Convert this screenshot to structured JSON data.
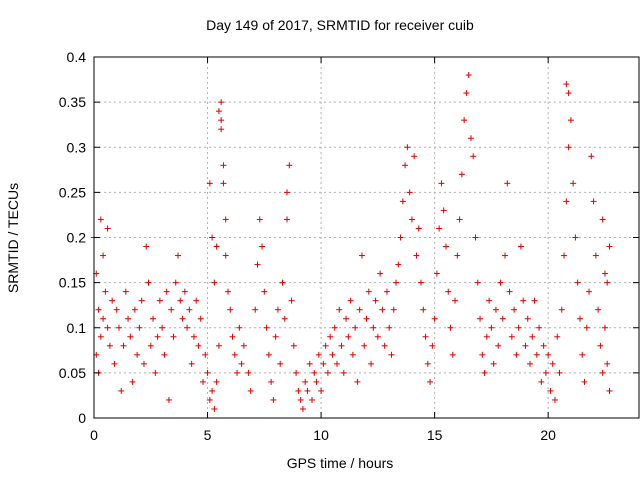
{
  "chart_data": {
    "type": "scatter",
    "title": "Day 149 of 2017, SRMTID for receiver cuib",
    "xlabel": "GPS time / hours",
    "ylabel": "SRMTID / TECUs",
    "xlim": [
      0,
      24
    ],
    "ylim": [
      0,
      0.4
    ],
    "x_ticks": [
      0,
      5,
      10,
      15,
      20
    ],
    "x_tick_labels": [
      "0",
      "5",
      "10",
      "15",
      "20"
    ],
    "y_ticks": [
      0,
      0.05,
      0.1,
      0.15,
      0.2,
      0.25,
      0.3,
      0.35,
      0.4
    ],
    "y_tick_labels": [
      "0",
      "0.05",
      "0.1",
      "0.15",
      "0.2",
      "0.25",
      "0.3",
      "0.35",
      "0.4"
    ],
    "grid": true,
    "marker": "+",
    "color": "#e00000",
    "series": [
      {
        "name": "SRMTID",
        "points": [
          [
            0.0,
            0.2
          ],
          [
            0.1,
            0.16
          ],
          [
            0.2,
            0.12
          ],
          [
            0.3,
            0.22
          ],
          [
            0.4,
            0.18
          ],
          [
            0.5,
            0.14
          ],
          [
            0.6,
            0.21
          ],
          [
            0.1,
            0.07
          ],
          [
            0.2,
            0.05
          ],
          [
            0.3,
            0.09
          ],
          [
            0.4,
            0.11
          ],
          [
            0.6,
            0.1
          ],
          [
            0.7,
            0.08
          ],
          [
            0.8,
            0.13
          ],
          [
            0.9,
            0.06
          ],
          [
            1.0,
            0.12
          ],
          [
            1.1,
            0.1
          ],
          [
            1.2,
            0.03
          ],
          [
            1.3,
            0.08
          ],
          [
            1.4,
            0.14
          ],
          [
            1.5,
            0.11
          ],
          [
            1.6,
            0.09
          ],
          [
            1.7,
            0.04
          ],
          [
            1.8,
            0.12
          ],
          [
            1.9,
            0.07
          ],
          [
            2.0,
            0.1
          ],
          [
            2.1,
            0.13
          ],
          [
            2.2,
            0.06
          ],
          [
            2.3,
            0.19
          ],
          [
            2.4,
            0.15
          ],
          [
            2.5,
            0.08
          ],
          [
            2.6,
            0.11
          ],
          [
            2.7,
            0.05
          ],
          [
            2.8,
            0.09
          ],
          [
            2.9,
            0.13
          ],
          [
            3.0,
            0.1
          ],
          [
            3.1,
            0.07
          ],
          [
            3.2,
            0.14
          ],
          [
            3.3,
            0.02
          ],
          [
            3.4,
            0.12
          ],
          [
            3.5,
            0.09
          ],
          [
            3.6,
            0.15
          ],
          [
            3.7,
            0.18
          ],
          [
            3.8,
            0.13
          ],
          [
            3.9,
            0.11
          ],
          [
            4.0,
            0.14
          ],
          [
            4.1,
            0.1
          ],
          [
            4.2,
            0.12
          ],
          [
            4.3,
            0.06
          ],
          [
            4.4,
            0.09
          ],
          [
            4.5,
            0.13
          ],
          [
            4.6,
            0.08
          ],
          [
            4.7,
            0.11
          ],
          [
            4.8,
            0.04
          ],
          [
            4.9,
            0.07
          ],
          [
            5.0,
            0.05
          ],
          [
            5.1,
            0.02
          ],
          [
            5.2,
            0.03
          ],
          [
            5.3,
            0.01
          ],
          [
            5.4,
            0.04
          ],
          [
            5.5,
            0.08
          ],
          [
            5.1,
            0.26
          ],
          [
            5.2,
            0.2
          ],
          [
            5.3,
            0.15
          ],
          [
            5.4,
            0.19
          ],
          [
            5.5,
            0.34
          ],
          [
            5.6,
            0.35
          ],
          [
            5.6,
            0.32
          ],
          [
            5.6,
            0.33
          ],
          [
            5.7,
            0.28
          ],
          [
            5.7,
            0.26
          ],
          [
            5.8,
            0.22
          ],
          [
            5.8,
            0.18
          ],
          [
            5.9,
            0.14
          ],
          [
            6.0,
            0.12
          ],
          [
            6.1,
            0.09
          ],
          [
            6.2,
            0.07
          ],
          [
            6.3,
            0.05
          ],
          [
            6.4,
            0.1
          ],
          [
            6.5,
            0.06
          ],
          [
            6.6,
            0.08
          ],
          [
            6.8,
            0.05
          ],
          [
            6.9,
            0.03
          ],
          [
            7.1,
            0.12
          ],
          [
            7.2,
            0.17
          ],
          [
            7.3,
            0.22
          ],
          [
            7.4,
            0.19
          ],
          [
            7.5,
            0.14
          ],
          [
            7.6,
            0.1
          ],
          [
            7.7,
            0.07
          ],
          [
            7.8,
            0.04
          ],
          [
            7.9,
            0.02
          ],
          [
            8.0,
            0.09
          ],
          [
            8.1,
            0.12
          ],
          [
            8.2,
            0.06
          ],
          [
            8.3,
            0.15
          ],
          [
            8.4,
            0.11
          ],
          [
            8.5,
            0.22
          ],
          [
            8.5,
            0.25
          ],
          [
            8.6,
            0.28
          ],
          [
            8.7,
            0.13
          ],
          [
            8.8,
            0.08
          ],
          [
            8.9,
            0.05
          ],
          [
            9.0,
            0.03
          ],
          [
            9.1,
            0.02
          ],
          [
            9.2,
            0.01
          ],
          [
            9.3,
            0.04
          ],
          [
            9.4,
            0.03
          ],
          [
            9.5,
            0.06
          ],
          [
            9.6,
            0.02
          ],
          [
            9.7,
            0.05
          ],
          [
            9.8,
            0.04
          ],
          [
            9.9,
            0.07
          ],
          [
            10.0,
            0.03
          ],
          [
            10.1,
            0.06
          ],
          [
            10.2,
            0.08
          ],
          [
            10.3,
            0.05
          ],
          [
            10.4,
            0.09
          ],
          [
            10.5,
            0.07
          ],
          [
            10.6,
            0.1
          ],
          [
            10.7,
            0.06
          ],
          [
            10.8,
            0.12
          ],
          [
            10.9,
            0.08
          ],
          [
            11.0,
            0.05
          ],
          [
            11.1,
            0.11
          ],
          [
            11.2,
            0.09
          ],
          [
            11.3,
            0.13
          ],
          [
            11.4,
            0.07
          ],
          [
            11.5,
            0.1
          ],
          [
            11.6,
            0.04
          ],
          [
            11.7,
            0.12
          ],
          [
            11.8,
            0.18
          ],
          [
            11.9,
            0.08
          ],
          [
            12.0,
            0.11
          ],
          [
            12.1,
            0.14
          ],
          [
            12.2,
            0.06
          ],
          [
            12.3,
            0.1
          ],
          [
            12.4,
            0.13
          ],
          [
            12.5,
            0.09
          ],
          [
            12.6,
            0.16
          ],
          [
            12.7,
            0.12
          ],
          [
            12.8,
            0.08
          ],
          [
            12.9,
            0.14
          ],
          [
            13.0,
            0.1
          ],
          [
            13.1,
            0.07
          ],
          [
            13.2,
            0.12
          ],
          [
            13.3,
            0.15
          ],
          [
            13.4,
            0.17
          ],
          [
            13.5,
            0.2
          ],
          [
            13.6,
            0.24
          ],
          [
            13.7,
            0.28
          ],
          [
            13.8,
            0.3
          ],
          [
            13.9,
            0.25
          ],
          [
            14.0,
            0.22
          ],
          [
            14.1,
            0.29
          ],
          [
            14.2,
            0.18
          ],
          [
            14.3,
            0.21
          ],
          [
            14.4,
            0.15
          ],
          [
            14.5,
            0.12
          ],
          [
            14.6,
            0.09
          ],
          [
            14.7,
            0.06
          ],
          [
            14.8,
            0.04
          ],
          [
            14.9,
            0.08
          ],
          [
            15.0,
            0.11
          ],
          [
            15.1,
            0.16
          ],
          [
            15.2,
            0.21
          ],
          [
            15.3,
            0.26
          ],
          [
            15.4,
            0.23
          ],
          [
            15.5,
            0.19
          ],
          [
            15.6,
            0.14
          ],
          [
            15.7,
            0.1
          ],
          [
            15.8,
            0.07
          ],
          [
            15.9,
            0.13
          ],
          [
            16.0,
            0.18
          ],
          [
            16.1,
            0.22
          ],
          [
            16.2,
            0.27
          ],
          [
            16.3,
            0.33
          ],
          [
            16.4,
            0.36
          ],
          [
            16.5,
            0.38
          ],
          [
            16.6,
            0.31
          ],
          [
            16.7,
            0.29
          ],
          [
            16.8,
            0.2
          ],
          [
            16.9,
            0.15
          ],
          [
            17.0,
            0.11
          ],
          [
            17.1,
            0.07
          ],
          [
            17.2,
            0.05
          ],
          [
            17.3,
            0.09
          ],
          [
            17.4,
            0.13
          ],
          [
            17.5,
            0.1
          ],
          [
            17.6,
            0.06
          ],
          [
            17.7,
            0.12
          ],
          [
            17.8,
            0.08
          ],
          [
            17.9,
            0.15
          ],
          [
            18.0,
            0.11
          ],
          [
            18.1,
            0.18
          ],
          [
            18.2,
            0.26
          ],
          [
            18.3,
            0.14
          ],
          [
            18.4,
            0.09
          ],
          [
            18.5,
            0.12
          ],
          [
            18.6,
            0.07
          ],
          [
            18.7,
            0.1
          ],
          [
            18.8,
            0.19
          ],
          [
            18.9,
            0.13
          ],
          [
            19.0,
            0.08
          ],
          [
            19.1,
            0.11
          ],
          [
            19.2,
            0.06
          ],
          [
            19.3,
            0.09
          ],
          [
            19.4,
            0.13
          ],
          [
            19.5,
            0.07
          ],
          [
            19.6,
            0.1
          ],
          [
            19.7,
            0.04
          ],
          [
            19.8,
            0.08
          ],
          [
            19.9,
            0.05
          ],
          [
            20.0,
            0.07
          ],
          [
            20.1,
            0.03
          ],
          [
            20.2,
            0.06
          ],
          [
            20.3,
            0.02
          ],
          [
            20.4,
            0.09
          ],
          [
            20.5,
            0.05
          ],
          [
            20.6,
            0.12
          ],
          [
            20.7,
            0.18
          ],
          [
            20.8,
            0.24
          ],
          [
            20.9,
            0.3
          ],
          [
            20.8,
            0.37
          ],
          [
            20.9,
            0.36
          ],
          [
            21.0,
            0.33
          ],
          [
            21.1,
            0.26
          ],
          [
            21.2,
            0.2
          ],
          [
            21.3,
            0.15
          ],
          [
            21.4,
            0.11
          ],
          [
            21.5,
            0.07
          ],
          [
            21.6,
            0.04
          ],
          [
            21.7,
            0.1
          ],
          [
            21.8,
            0.14
          ],
          [
            21.9,
            0.29
          ],
          [
            22.0,
            0.24
          ],
          [
            22.1,
            0.18
          ],
          [
            22.2,
            0.12
          ],
          [
            22.3,
            0.08
          ],
          [
            22.4,
            0.05
          ],
          [
            22.5,
            0.1
          ],
          [
            22.6,
            0.15
          ],
          [
            22.7,
            0.19
          ],
          [
            22.4,
            0.22
          ],
          [
            22.5,
            0.16
          ],
          [
            22.6,
            0.06
          ],
          [
            22.7,
            0.03
          ]
        ]
      }
    ]
  }
}
